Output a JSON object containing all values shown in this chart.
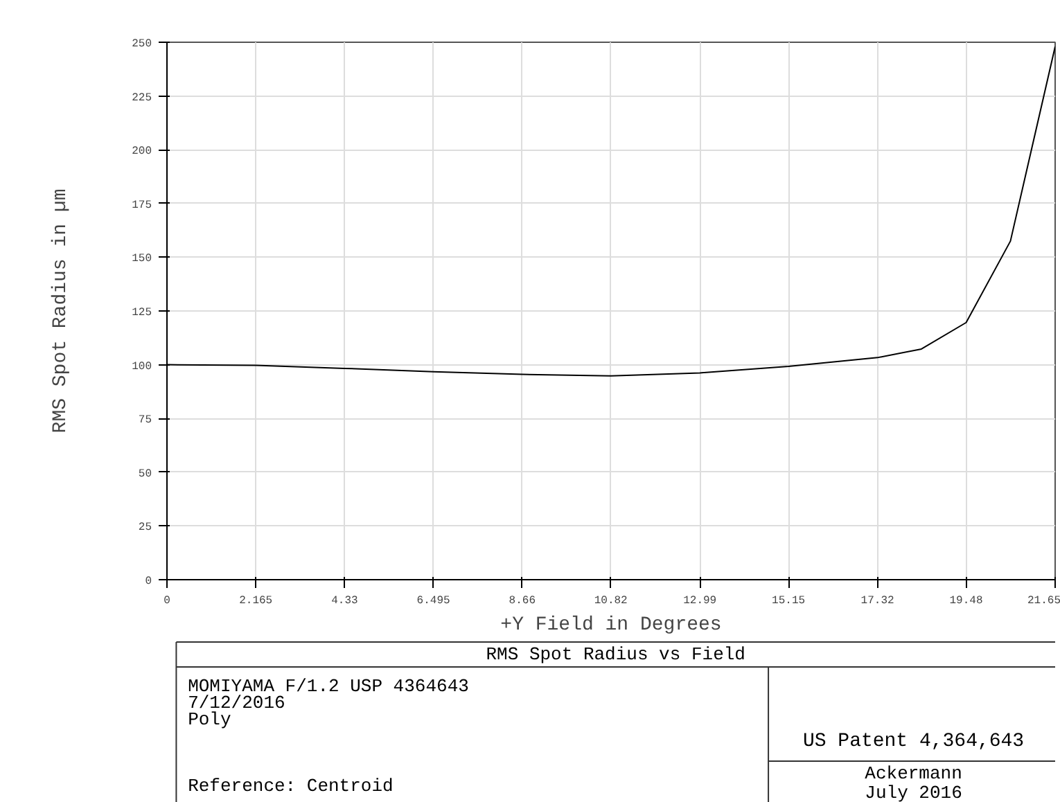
{
  "chart_data": {
    "type": "line",
    "title": "RMS Spot Radius vs Field",
    "xlabel": "+Y Field in Degrees",
    "ylabel": "RMS Spot Radius in µm",
    "x": [
      0,
      2.165,
      4.33,
      6.495,
      8.66,
      10.82,
      12.99,
      15.15,
      17.32,
      18.39,
      19.48,
      20.56,
      21.65
    ],
    "series": [
      {
        "color": "#000000",
        "values": [
          100,
          99.7,
          98.3,
          96.7,
          95.5,
          94.8,
          96.2,
          99.2,
          103.3,
          107.3,
          119.6,
          157.5,
          248
        ]
      }
    ],
    "xlim": [
      0,
      21.65
    ],
    "ylim": [
      0,
      250
    ],
    "xticks": [
      0,
      2.165,
      4.33,
      6.495,
      8.66,
      10.82,
      12.99,
      15.15,
      17.32,
      19.48,
      21.65
    ],
    "yticks": [
      0,
      25,
      50,
      75,
      100,
      125,
      150,
      175,
      200,
      225,
      250
    ],
    "grid": true,
    "marker": "none",
    "line_style": "solid",
    "annotations": [
      "MOMIYAMA F/1.2  USP 4364643",
      "7/12/2016",
      "Poly",
      "Reference: Centroid",
      "US Patent 4,364,643",
      "Ackermann",
      "July 2016"
    ]
  }
}
